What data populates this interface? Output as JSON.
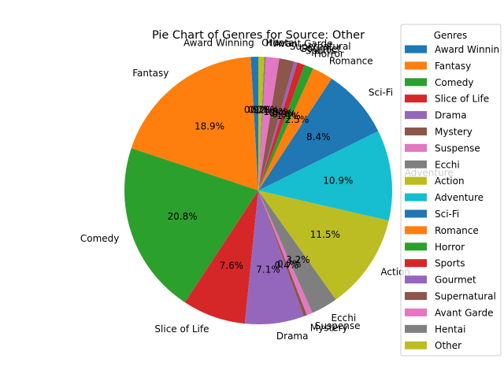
{
  "chart_data": {
    "type": "pie",
    "title": "Pie Chart of Genres for Source: Other",
    "legend_title": "Genres",
    "legend_position": "right",
    "start_angle_deg": 90,
    "direction": "counterclockwise",
    "slices": [
      {
        "label": "Award Winning",
        "legend_label": "Award Winnin",
        "value": 0.9,
        "pct_label": "0.9%",
        "color": "#1f77b4"
      },
      {
        "label": "Fantasy",
        "legend_label": "Fantasy",
        "value": 18.9,
        "pct_label": "18.9%",
        "color": "#ff7f0e"
      },
      {
        "label": "Comedy",
        "legend_label": "Comedy",
        "value": 20.8,
        "pct_label": "20.8%",
        "color": "#2ca02c"
      },
      {
        "label": "Slice of Life",
        "legend_label": "Slice of Life",
        "value": 7.6,
        "pct_label": "7.6%",
        "color": "#d62728"
      },
      {
        "label": "Drama",
        "legend_label": "Drama",
        "value": 7.1,
        "pct_label": "7.1%",
        "color": "#9467bd"
      },
      {
        "label": "Mystery",
        "legend_label": "Mystery",
        "value": 0.4,
        "pct_label": "0.4%",
        "color": "#8c564b"
      },
      {
        "label": "Suspense",
        "legend_label": "Suspense",
        "value": 0.7,
        "pct_label": "0.7%",
        "color": "#e377c2"
      },
      {
        "label": "Ecchi",
        "legend_label": "Ecchi",
        "value": 3.2,
        "pct_label": "3.2%",
        "color": "#7f7f7f"
      },
      {
        "label": "Action",
        "legend_label": "Action",
        "value": 11.5,
        "pct_label": "11.5%",
        "color": "#bcbd22"
      },
      {
        "label": "Adventure",
        "legend_label": "Adventure",
        "value": 10.9,
        "pct_label": "10.9%",
        "color": "#17becf"
      },
      {
        "label": "Sci-Fi",
        "legend_label": "Sci-Fi",
        "value": 8.4,
        "pct_label": "8.4%",
        "color": "#1f77b4"
      },
      {
        "label": "Romance",
        "legend_label": "Romance",
        "value": 2.5,
        "pct_label": "2.5%",
        "color": "#ff7f0e"
      },
      {
        "label": "Horror",
        "legend_label": "Horror",
        "value": 1.1,
        "pct_label": "1.1%",
        "color": "#2ca02c"
      },
      {
        "label": "Sports",
        "legend_label": "Sports",
        "value": 0.9,
        "pct_label": "0.9%",
        "color": "#d62728"
      },
      {
        "label": "Gourmet",
        "legend_label": "Gourmet",
        "value": 0.4,
        "pct_label": "0.4%",
        "color": "#9467bd"
      },
      {
        "label": "Supernatural",
        "legend_label": "Supernatural",
        "value": 1.8,
        "pct_label": "1.8%",
        "color": "#8c564b"
      },
      {
        "label": "Avant Garde",
        "legend_label": "Avant Garde",
        "value": 1.6,
        "pct_label": "1.6%",
        "color": "#e377c2"
      },
      {
        "label": "Hentai",
        "legend_label": "Hentai",
        "value": 0.2,
        "pct_label": "0.2%",
        "color": "#7f7f7f"
      },
      {
        "label": "Other",
        "legend_label": "Other",
        "value": 0.7,
        "pct_label": "0.7%",
        "color": "#bcbd22"
      }
    ]
  }
}
